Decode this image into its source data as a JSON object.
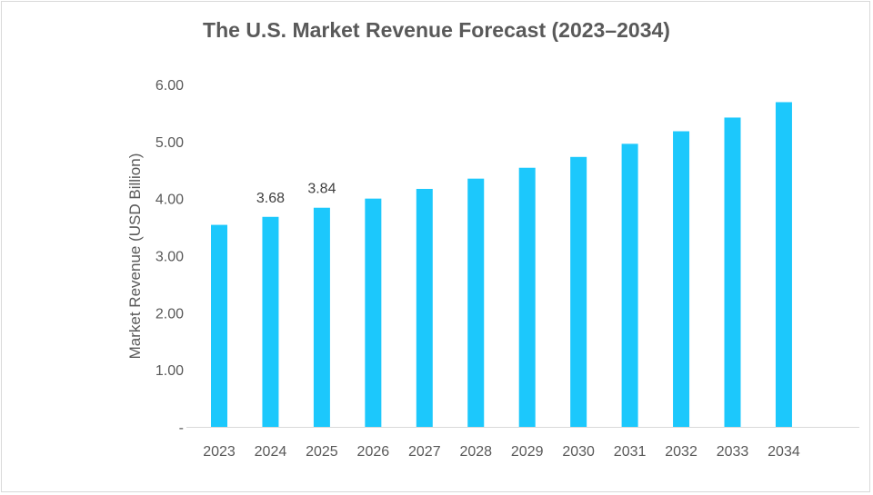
{
  "chart_data": {
    "type": "bar",
    "title": "The U.S. Market Revenue Forecast (2023–2034)",
    "xlabel": "",
    "ylabel": "Market Revenue (USD Billion)",
    "categories": [
      "2023",
      "2024",
      "2025",
      "2026",
      "2027",
      "2028",
      "2029",
      "2030",
      "2031",
      "2032",
      "2033",
      "2034"
    ],
    "values": [
      3.54,
      3.68,
      3.84,
      4.0,
      4.17,
      4.35,
      4.54,
      4.73,
      4.96,
      5.18,
      5.42,
      5.69
    ],
    "data_labels": {
      "2024": "3.68",
      "2025": "3.84"
    },
    "ylim": [
      0,
      6
    ],
    "yticks": [
      "-",
      "1.00",
      "2.00",
      "3.00",
      "4.00",
      "5.00",
      "6.00"
    ],
    "grid": false,
    "bar_color": "#1CC8FC"
  }
}
